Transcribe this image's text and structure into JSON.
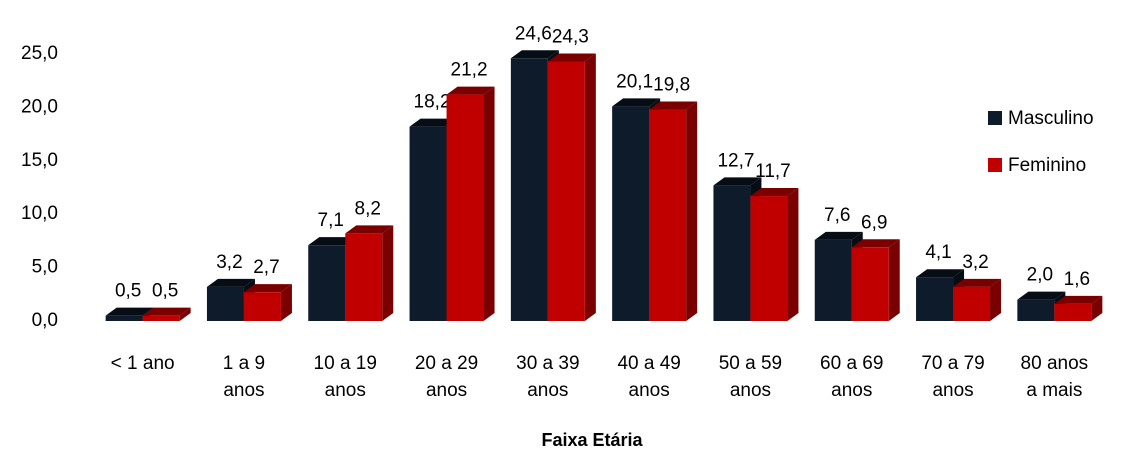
{
  "chart_data": {
    "type": "bar3d",
    "x_label": "Faixa Etária",
    "categories": [
      "< 1 ano",
      "1 a 9 anos",
      "10 a 19 anos",
      "20 a 29 anos",
      "30 a 39 anos",
      "40 a 49 anos",
      "50 a 59 anos",
      "60 a 69 anos",
      "70 a 79 anos",
      "80 anos a mais"
    ],
    "series": [
      {
        "name": "Masculino",
        "color": "#0d1b2a",
        "side": "#060d15",
        "values": [
          0.5,
          3.2,
          7.1,
          18.2,
          24.6,
          20.1,
          12.7,
          7.6,
          4.1,
          2.0
        ],
        "value_labels": [
          "0,5",
          "3,2",
          "7,1",
          "18,2",
          "24,6",
          "20,1",
          "12,7",
          "7,6",
          "4,1",
          "2,0"
        ]
      },
      {
        "name": "Feminino",
        "color": "#c00000",
        "side": "#7a0000",
        "values": [
          0.5,
          2.7,
          8.2,
          21.2,
          24.3,
          19.8,
          11.7,
          6.9,
          3.2,
          1.6
        ],
        "value_labels": [
          "0,5",
          "2,7",
          "8,2",
          "21,2",
          "24,3",
          "19,8",
          "11,7",
          "6,9",
          "3,2",
          "1,6"
        ]
      }
    ],
    "ylim": [
      0,
      25
    ],
    "yticks": [
      {
        "value": 0,
        "label": "0,0"
      },
      {
        "value": 5,
        "label": "5,0"
      },
      {
        "value": 10,
        "label": "10,0"
      },
      {
        "value": 15,
        "label": "15,0"
      },
      {
        "value": 20,
        "label": "20,0"
      },
      {
        "value": 25,
        "label": "25,0"
      }
    ],
    "legend": "right",
    "grid": false
  }
}
